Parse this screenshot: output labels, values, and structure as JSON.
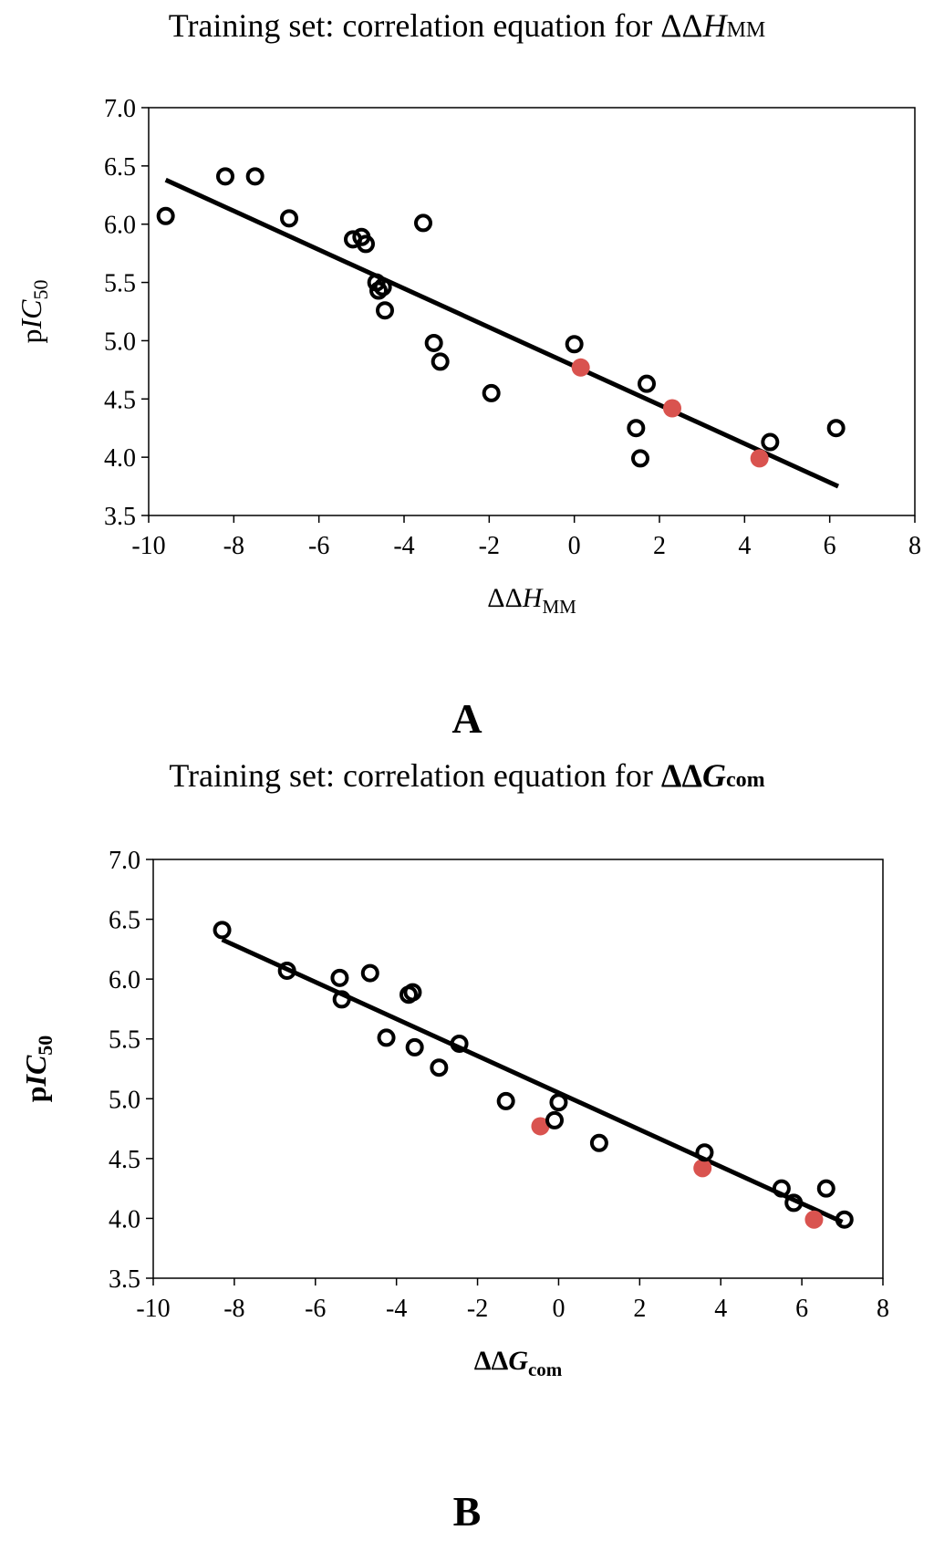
{
  "panels": [
    {
      "letter": "A",
      "title": {
        "prefix": "Training set: correlation equation for ",
        "delta": "ΔΔ",
        "sym": "H",
        "sub": "MM"
      },
      "xlabel": {
        "delta": "ΔΔ",
        "sym": "H",
        "sub": "MM"
      },
      "ylabel": {
        "pre": "p",
        "sym": "IC",
        "sub": "50"
      }
    },
    {
      "letter": "B",
      "title": {
        "prefix": "Training set: correlation equation for ",
        "delta": "ΔΔ",
        "sym": "G",
        "sub": "com"
      },
      "xlabel": {
        "delta": "ΔΔ",
        "sym": "G",
        "sub": "com"
      },
      "ylabel": {
        "pre": "p",
        "sym": "IC",
        "sub": "50"
      }
    }
  ],
  "colors": {
    "training": "#000000",
    "test": "#d9534f",
    "line": "#000000"
  },
  "chart_data": [
    {
      "type": "scatter",
      "title": "Training set: correlation equation for ΔΔH_MM",
      "xlabel": "ΔΔH_MM",
      "ylabel": "pIC50",
      "xlim": [
        -10,
        8
      ],
      "ylim": [
        3.5,
        7.0
      ],
      "xticks": [
        -10,
        -8,
        -6,
        -4,
        -2,
        0,
        2,
        4,
        6,
        8
      ],
      "yticks": [
        "3.5",
        "4.0",
        "4.5",
        "5.0",
        "5.5",
        "6.0",
        "6.5",
        "7.0"
      ],
      "grid": false,
      "series": [
        {
          "name": "training",
          "style": "open-circle",
          "x": [
            -9.6,
            -8.2,
            -7.5,
            -6.7,
            -5.2,
            -5.0,
            -4.9,
            -4.65,
            -4.6,
            -4.5,
            -4.45,
            -3.55,
            -3.3,
            -3.15,
            -1.95,
            0.0,
            1.45,
            1.55,
            1.7,
            4.6,
            6.15
          ],
          "y": [
            6.07,
            6.41,
            6.41,
            6.05,
            5.87,
            5.89,
            5.83,
            5.5,
            5.43,
            5.46,
            5.26,
            6.01,
            4.98,
            4.82,
            4.55,
            4.97,
            4.25,
            3.99,
            4.63,
            4.13,
            4.25
          ]
        },
        {
          "name": "test",
          "style": "filled-circle",
          "x": [
            0.15,
            2.3,
            4.35
          ],
          "y": [
            4.77,
            4.42,
            3.99
          ]
        }
      ],
      "fit_line": {
        "x": [
          -9.6,
          6.2
        ],
        "y": [
          6.38,
          3.75
        ]
      }
    },
    {
      "type": "scatter",
      "title": "Training set: correlation equation for ΔΔG_com",
      "xlabel": "ΔΔG_com",
      "ylabel": "pIC50",
      "xlim": [
        -10,
        8
      ],
      "ylim": [
        3.5,
        7.0
      ],
      "xticks": [
        -10,
        -8,
        -6,
        -4,
        -2,
        0,
        2,
        4,
        6,
        8
      ],
      "yticks": [
        "3.5",
        "4.0",
        "4.5",
        "5.0",
        "5.5",
        "6.0",
        "6.5",
        "7.0"
      ],
      "grid": false,
      "series": [
        {
          "name": "training",
          "style": "open-circle",
          "x": [
            -8.3,
            -6.7,
            -5.4,
            -5.35,
            -4.65,
            -4.25,
            -3.7,
            -3.6,
            -3.55,
            -2.95,
            -2.45,
            -1.3,
            -0.1,
            0.0,
            1.0,
            3.6,
            5.5,
            5.8,
            6.6,
            7.05
          ],
          "y": [
            6.41,
            6.07,
            6.01,
            5.83,
            6.05,
            5.51,
            5.87,
            5.89,
            5.43,
            5.26,
            5.46,
            4.98,
            4.82,
            4.97,
            4.63,
            4.55,
            4.25,
            4.13,
            4.25,
            3.99
          ]
        },
        {
          "name": "test",
          "style": "filled-circle",
          "x": [
            -0.45,
            3.55,
            6.3
          ],
          "y": [
            4.77,
            4.42,
            3.99
          ]
        }
      ],
      "fit_line": {
        "x": [
          -8.3,
          7.0
        ],
        "y": [
          6.33,
          3.97
        ]
      }
    }
  ]
}
